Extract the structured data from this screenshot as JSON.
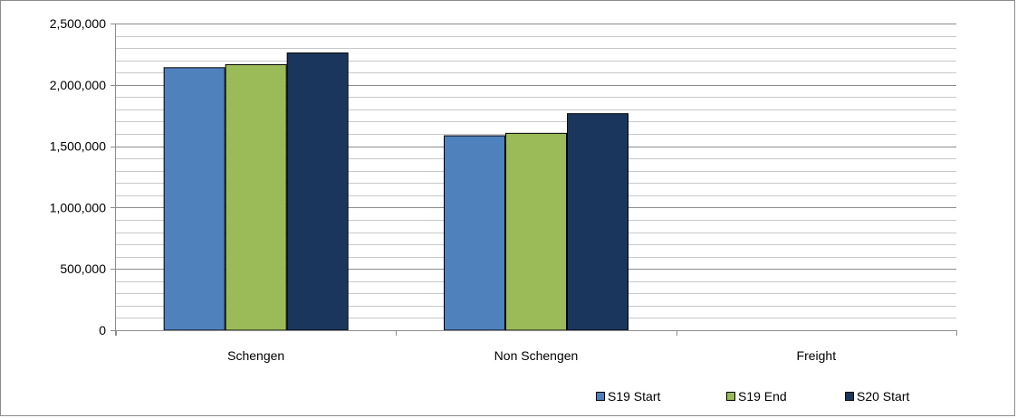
{
  "chart_data": {
    "type": "bar",
    "title": "",
    "xlabel": "",
    "ylabel": "",
    "categories": [
      "Schengen",
      "Non Schengen",
      "Freight"
    ],
    "series": [
      {
        "name": "S19 Start",
        "values": [
          2140000,
          1585000,
          0
        ],
        "color": "#4f81bd"
      },
      {
        "name": "S19 End",
        "values": [
          2165000,
          1605000,
          0
        ],
        "color": "#9bbb59"
      },
      {
        "name": "S20 Start",
        "values": [
          2260000,
          1765000,
          0
        ],
        "color": "#1b365d"
      }
    ],
    "ylim": [
      0,
      2500000
    ],
    "major_ticks": [
      0,
      500000,
      1000000,
      1500000,
      2000000,
      2500000
    ],
    "tick_labels": [
      "0",
      "500,000",
      "1,000,000",
      "1,500,000",
      "2,000,000",
      "2,500,000"
    ],
    "minor_step": 100000,
    "grid": true,
    "legend_position": "bottom-right"
  }
}
